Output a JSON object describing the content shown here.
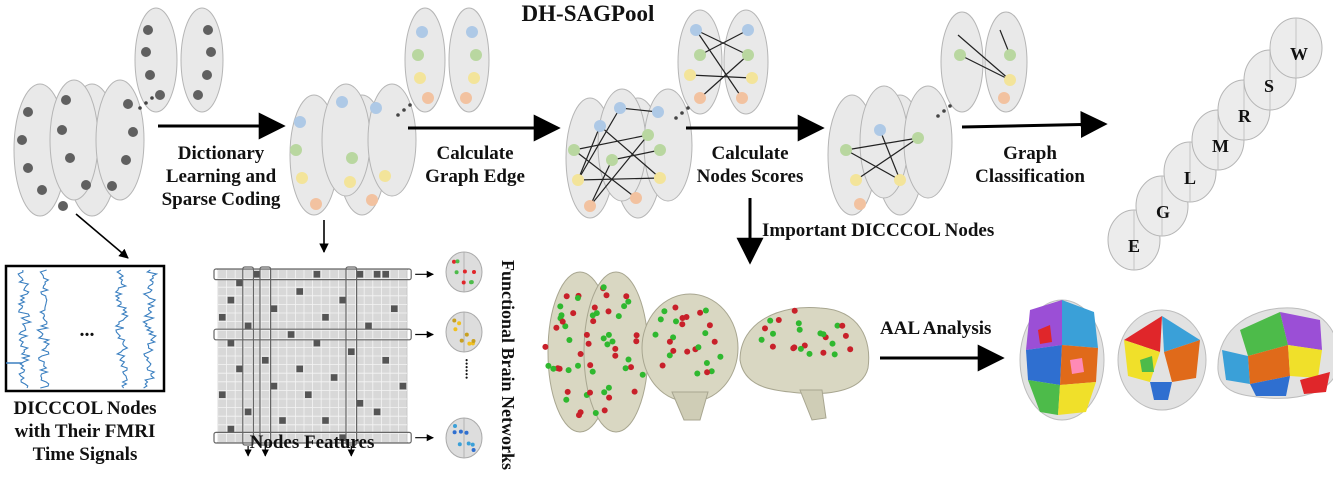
{
  "title": "DH-SAGPool",
  "steps": {
    "dictionary": [
      "Dictionary",
      "Learning and",
      "Sparse Coding"
    ],
    "graph_edge": [
      "Calculate",
      "Graph Edge"
    ],
    "node_scores": [
      "Calculate",
      "Nodes Scores"
    ],
    "classification": [
      "Graph",
      "Classification"
    ]
  },
  "important_nodes": "Important DICCCOL Nodes",
  "aal_analysis": "AAL Analysis",
  "nodes_features": "Nodes Features",
  "functional_networks": "Functional Brain Networks",
  "dicccol_caption": [
    "DICCCOL Nodes",
    "with Their FMRI",
    "Time Signals"
  ],
  "signal_ellipsis": "...",
  "network_ellipsis": "......",
  "classes": [
    "E",
    "G",
    "L",
    "M",
    "R",
    "S",
    "W"
  ],
  "colors": {
    "node_gray": "#606060",
    "node_blue": "#aec9e6",
    "node_green": "#b9d7a0",
    "node_yellow": "#f3e49a",
    "node_orange": "#f2c2a0",
    "signal_blue": "#3a7fc0",
    "brain_fill": "#e9e9e9",
    "brain_stroke": "#b5b5b5"
  }
}
